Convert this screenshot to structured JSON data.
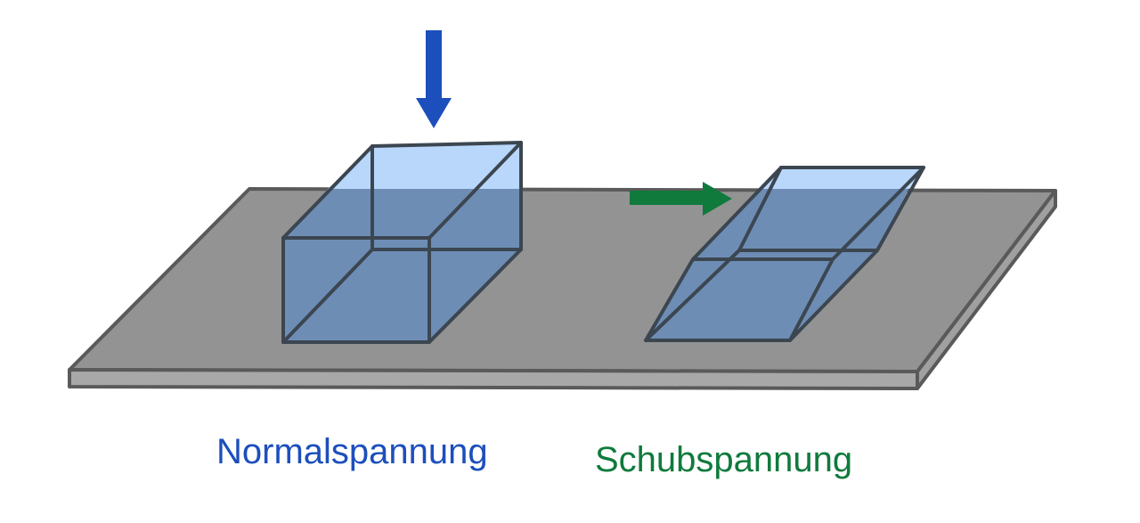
{
  "labels": {
    "normal_stress": "Normalspannung",
    "shear_stress": "Schubspannung"
  },
  "colors": {
    "normal": "#1c4fbc",
    "shear": "#0f7a3c",
    "plate_top": "#939393",
    "plate_side": "#a8a8a8",
    "plate_edge": "#5a5a5a",
    "box_fill_light": "#b9d7fb",
    "box_fill_dark": "#6d8db5",
    "box_edge": "#3c4650"
  },
  "icons": {
    "normal_force": "arrow-down-icon",
    "shear_force": "arrow-right-icon"
  }
}
